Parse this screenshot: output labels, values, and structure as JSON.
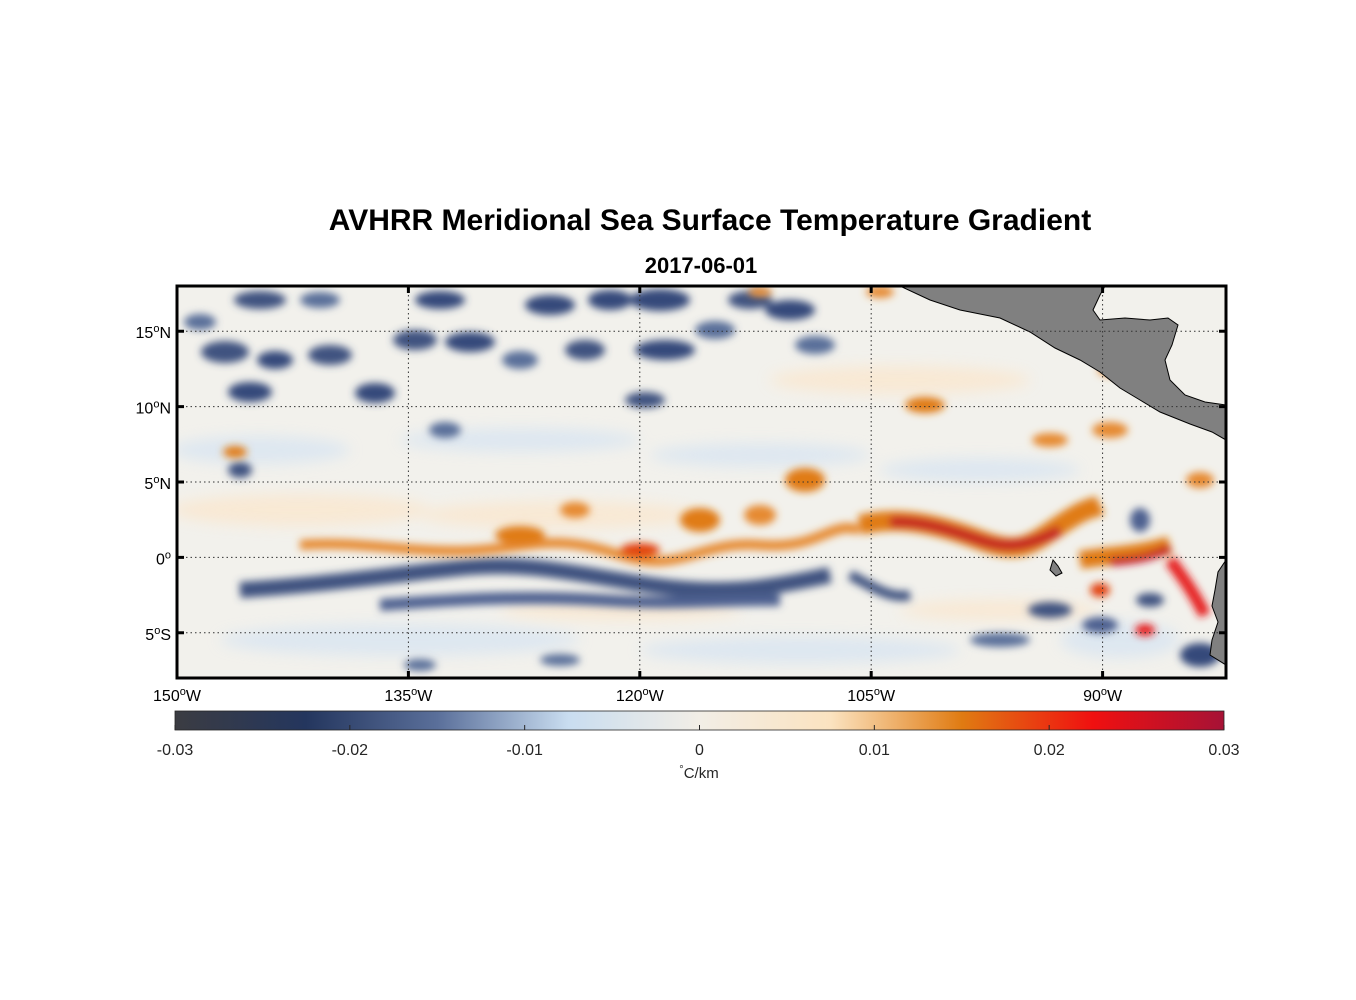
{
  "title": "AVHRR Meridional Sea Surface Temperature Gradient",
  "subtitle": "2017-06-01",
  "map": {
    "lon_range": [
      -150,
      -82
    ],
    "lat_range": [
      -8,
      18
    ],
    "lon_ticks": [
      {
        "value": -150,
        "deg": "150",
        "hemi": "W"
      },
      {
        "value": -135,
        "deg": "135",
        "hemi": "W"
      },
      {
        "value": -120,
        "deg": "120",
        "hemi": "W"
      },
      {
        "value": -105,
        "deg": "105",
        "hemi": "W"
      },
      {
        "value": -90,
        "deg": "90",
        "hemi": "W"
      }
    ],
    "lat_ticks": [
      {
        "value": 15,
        "deg": "15",
        "hemi": "N"
      },
      {
        "value": 10,
        "deg": "10",
        "hemi": "N"
      },
      {
        "value": 5,
        "deg": "5",
        "hemi": "N"
      },
      {
        "value": 0,
        "deg": "0",
        "hemi": ""
      },
      {
        "value": -5,
        "deg": "5",
        "hemi": "S"
      }
    ],
    "land_color": "#808080",
    "grid": "dotted"
  },
  "colorbar": {
    "range": [
      -0.03,
      0.03
    ],
    "ticks": [
      "-0.03",
      "-0.02",
      "-0.01",
      "0",
      "0.01",
      "0.02",
      "0.03"
    ],
    "unit_degree": "°",
    "unit": "C/km",
    "colors": [
      "#3b3c42",
      "#24365e",
      "#5a6f9a",
      "#c9ddf0",
      "#f2eee6",
      "#fbe3c0",
      "#e07b12",
      "#f01010",
      "#a61236"
    ]
  }
}
